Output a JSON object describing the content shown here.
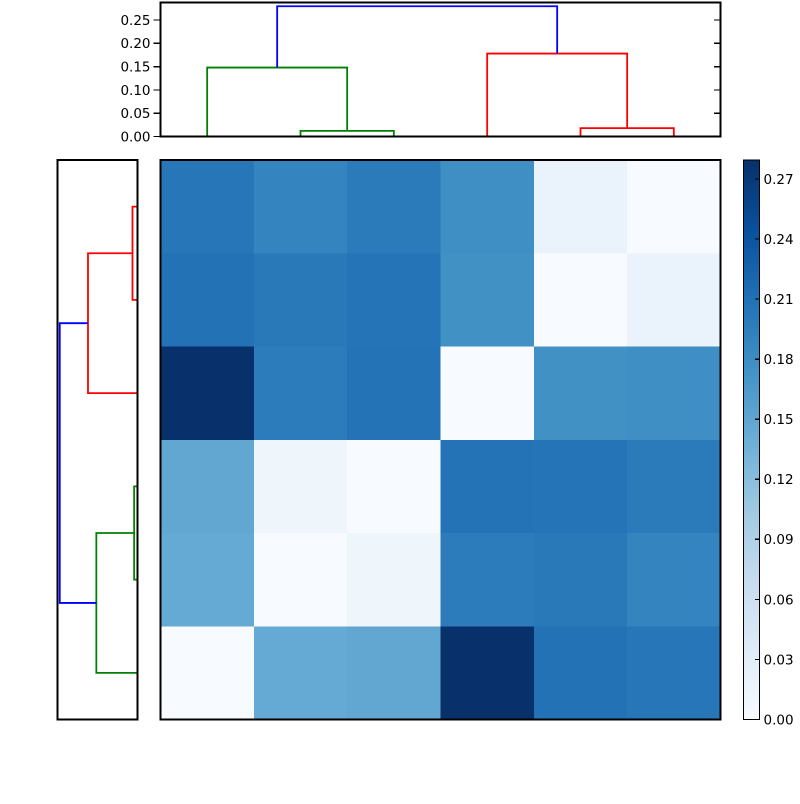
{
  "figure": {
    "kind": "hierarchical-clustering-heatmap",
    "background_color": "#ffffff",
    "spine_color": "#000000",
    "tick_color": "#000000"
  },
  "chart_data": {
    "type": "heatmap",
    "subtype": "clustermap-with-dendrograms",
    "title": "",
    "xlabel": "",
    "ylabel": "",
    "n_rows": 6,
    "n_cols": 6,
    "heatmap": {
      "vmin": 0.0,
      "vmax": 0.2795,
      "colormap": "Blues",
      "colormap_rgb_stops": [
        [
          0.0,
          [
            247,
            251,
            255
          ]
        ],
        [
          0.125,
          [
            222,
            235,
            247
          ]
        ],
        [
          0.25,
          [
            198,
            219,
            239
          ]
        ],
        [
          0.375,
          [
            158,
            202,
            225
          ]
        ],
        [
          0.5,
          [
            107,
            174,
            214
          ]
        ],
        [
          0.625,
          [
            66,
            146,
            198
          ]
        ],
        [
          0.75,
          [
            33,
            113,
            181
          ]
        ],
        [
          0.875,
          [
            8,
            81,
            156
          ]
        ],
        [
          1.0,
          [
            8,
            48,
            107
          ]
        ]
      ],
      "values": [
        [
          0.204,
          0.19,
          0.199,
          0.178,
          0.018,
          0.0
        ],
        [
          0.209,
          0.201,
          0.206,
          0.176,
          0.0,
          0.018
        ],
        [
          0.2795,
          0.198,
          0.207,
          0.0,
          0.176,
          0.178
        ],
        [
          0.148,
          0.012,
          0.0,
          0.207,
          0.206,
          0.199
        ],
        [
          0.145,
          0.0,
          0.012,
          0.198,
          0.201,
          0.19
        ],
        [
          0.0,
          0.145,
          0.148,
          0.2795,
          0.209,
          0.204
        ]
      ]
    },
    "top_dendrogram": {
      "orientation": "top",
      "n_leaves": 6,
      "axis_max": 0.2876,
      "ticks": [
        {
          "value": 0.0,
          "label": "0.00"
        },
        {
          "value": 0.05,
          "label": "0.05"
        },
        {
          "value": 0.1,
          "label": "0.10"
        },
        {
          "value": 0.15,
          "label": "0.15"
        },
        {
          "value": 0.2,
          "label": "0.20"
        },
        {
          "value": 0.25,
          "label": "0.25"
        }
      ],
      "links": [
        {
          "color": "#008000",
          "a": [
            1.5,
            0
          ],
          "b": [
            2.5,
            0
          ],
          "height": 0.012
        },
        {
          "color": "#008000",
          "a": [
            0.5,
            0
          ],
          "b": [
            2.0,
            0.012
          ],
          "height": 0.148
        },
        {
          "color": "#ff0000",
          "a": [
            4.5,
            0
          ],
          "b": [
            5.5,
            0
          ],
          "height": 0.018
        },
        {
          "color": "#ff0000",
          "a": [
            3.5,
            0
          ],
          "b": [
            5.0,
            0.018
          ],
          "height": 0.178
        },
        {
          "color": "#0000ff",
          "a": [
            1.25,
            0.148
          ],
          "b": [
            4.25,
            0.178
          ],
          "height": 0.2795
        }
      ]
    },
    "left_dendrogram": {
      "orientation": "left",
      "n_leaves": 6,
      "axis_max": 0.2876,
      "ticks": [],
      "links": [
        {
          "color": "#ff0000",
          "a": [
            0.5,
            0
          ],
          "b": [
            1.5,
            0
          ],
          "height": 0.018
        },
        {
          "color": "#ff0000",
          "a": [
            1.0,
            0.018
          ],
          "b": [
            2.5,
            0
          ],
          "height": 0.178
        },
        {
          "color": "#008000",
          "a": [
            3.5,
            0
          ],
          "b": [
            4.5,
            0
          ],
          "height": 0.012
        },
        {
          "color": "#008000",
          "a": [
            4.0,
            0.012
          ],
          "b": [
            5.5,
            0
          ],
          "height": 0.148
        },
        {
          "color": "#0000ff",
          "a": [
            1.75,
            0.178
          ],
          "b": [
            4.75,
            0.148
          ],
          "height": 0.2795
        }
      ]
    },
    "colorbar": {
      "range": [
        0.0,
        0.2795
      ],
      "ticks": [
        {
          "value": 0.0,
          "label": "0.00"
        },
        {
          "value": 0.03,
          "label": "0.03"
        },
        {
          "value": 0.06,
          "label": "0.06"
        },
        {
          "value": 0.09,
          "label": "0.09"
        },
        {
          "value": 0.12,
          "label": "0.12"
        },
        {
          "value": 0.15,
          "label": "0.15"
        },
        {
          "value": 0.18,
          "label": "0.18"
        },
        {
          "value": 0.21,
          "label": "0.21"
        },
        {
          "value": 0.24,
          "label": "0.24"
        },
        {
          "value": 0.27,
          "label": "0.27"
        }
      ]
    }
  }
}
